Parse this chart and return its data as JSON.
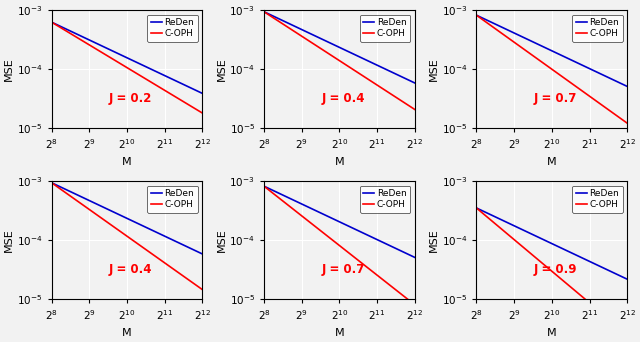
{
  "subplots": [
    {
      "J": 0.2,
      "row": 0,
      "col": 0,
      "row_type": 0
    },
    {
      "J": 0.4,
      "row": 0,
      "col": 1,
      "row_type": 0
    },
    {
      "J": 0.7,
      "row": 0,
      "col": 2,
      "row_type": 0
    },
    {
      "J": 0.4,
      "row": 1,
      "col": 0,
      "row_type": 1
    },
    {
      "J": 0.7,
      "row": 1,
      "col": 1,
      "row_type": 1
    },
    {
      "J": 0.9,
      "row": 1,
      "col": 2,
      "row_type": 1
    }
  ],
  "M_exp_min": 8,
  "M_exp_max": 12,
  "ylim": [
    1e-05,
    0.001
  ],
  "xtick_exps": [
    8,
    9,
    10,
    11,
    12
  ],
  "blue_color": "#0000CD",
  "red_color": "#FF0000",
  "label_color_J": "#FF0000",
  "background_color": "#f2f2f2",
  "grid_color": "#ffffff",
  "legend_labels": [
    "ReDen",
    "C-OPH"
  ],
  "xlabel": "M",
  "ylabel": "MSE",
  "figsize": [
    6.4,
    3.42
  ],
  "dpi": 100,
  "row0_reden_coeff": 1.0,
  "row0_reden_exp": 1.0,
  "row0_coph_beta_a": 0.18,
  "row0_coph_beta_b": 0.48,
  "row1_reden_coeff": 1.0,
  "row1_reden_exp": 1.0,
  "row1_coph_beta_a": 0.28,
  "row1_coph_beta_b": 0.55
}
